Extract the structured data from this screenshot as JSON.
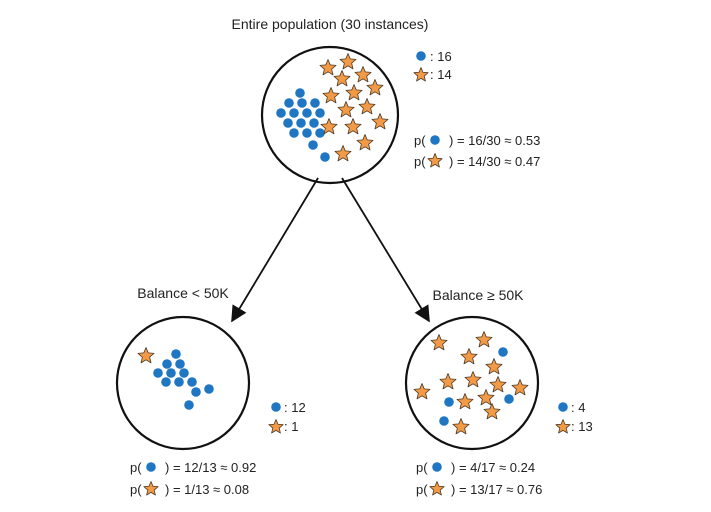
{
  "colors": {
    "dot": "#1f77c4",
    "star": "#f29a45",
    "star_stroke": "#4a3a2a",
    "circle_stroke": "#111111",
    "text": "#222222"
  },
  "icons": {
    "dot": "blue-dot-icon",
    "star": "orange-star-icon"
  },
  "nodes": {
    "root": {
      "title": "Entire population (30 instances)",
      "count_dot": ": 16",
      "count_star": ": 14",
      "p_open": "p(",
      "p_dot_expr": ") = 16/30 ≈ 0.53",
      "p_star_expr": ") = 14/30 ≈ 0.47"
    },
    "left": {
      "title": "Balance < 50K",
      "count_dot": ": 12",
      "count_star": ": 1",
      "p_open": "p(",
      "p_dot_expr": ") = 12/13 ≈ 0.92",
      "p_star_expr": ") = 1/13 ≈ 0.08"
    },
    "right": {
      "title": "Balance ≥ 50K",
      "count_dot": ": 4",
      "count_star": ": 13",
      "p_open": "p(",
      "p_dot_expr": ") = 4/17 ≈ 0.24",
      "p_star_expr": ") = 13/17 ≈ 0.76"
    }
  }
}
